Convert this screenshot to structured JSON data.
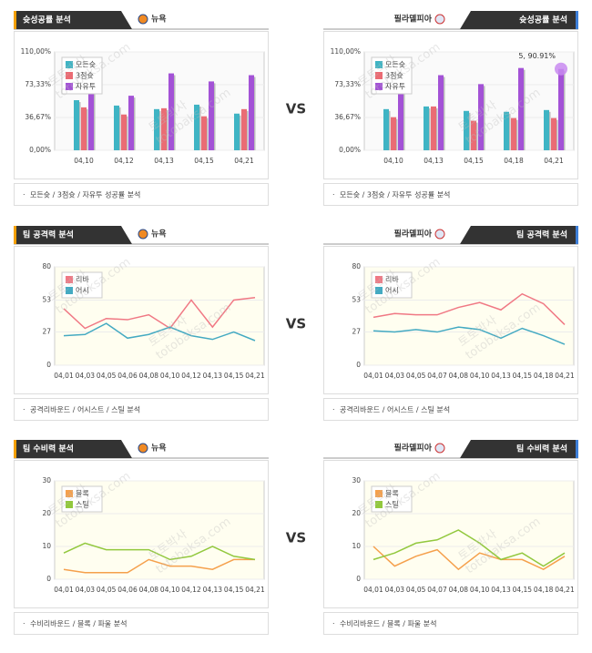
{
  "watermark": [
    "토토박사",
    "totobaksa.com"
  ],
  "vs": [
    "VS",
    "VS",
    "VS"
  ],
  "chart_data": [
    {
      "type": "bar",
      "title": "슛성공률 분석",
      "team": "뉴욕",
      "note": "모든슛 / 3점슛 / 자유투 성공률 분석",
      "categories": [
        "04,10",
        "04,12",
        "04,13",
        "04,15",
        "04,21"
      ],
      "series": [
        {
          "name": "모든슛",
          "color": "#3fb4c4",
          "values": [
            56,
            50,
            46,
            51,
            41
          ]
        },
        {
          "name": "3점슛",
          "color": "#ea6c74",
          "values": [
            48,
            40,
            47,
            38,
            46
          ]
        },
        {
          "name": "자유투",
          "color": "#a352d6",
          "values": [
            90,
            61,
            86,
            77,
            84
          ]
        }
      ],
      "ylim": [
        0,
        110
      ],
      "yticks": [
        {
          "value": 0,
          "label": "0,00%"
        },
        {
          "value": 36.67,
          "label": "36,67%"
        },
        {
          "value": 73.33,
          "label": "73,33%"
        },
        {
          "value": 110,
          "label": "110,00%"
        }
      ],
      "grid": true,
      "legend": "upper left"
    },
    {
      "type": "bar",
      "title": "슛성공률 분석",
      "team": "필라델피아",
      "note": "모든슛 / 3점슛 / 자유투 성공률 분석",
      "categories": [
        "04,10",
        "04,13",
        "04,15",
        "04,18",
        "04,21"
      ],
      "series": [
        {
          "name": "모든슛",
          "color": "#3fb4c4",
          "values": [
            46,
            49,
            44,
            43,
            45
          ]
        },
        {
          "name": "3점슛",
          "color": "#ea6c74",
          "values": [
            37,
            49,
            33,
            36,
            36
          ]
        },
        {
          "name": "자유투",
          "color": "#a352d6",
          "values": [
            70,
            84,
            74,
            92,
            90.91
          ]
        }
      ],
      "ylim": [
        0,
        110
      ],
      "yticks": [
        {
          "value": 0,
          "label": "0,00%"
        },
        {
          "value": 36.67,
          "label": "36,67%"
        },
        {
          "value": 73.33,
          "label": "73,33%"
        },
        {
          "value": 110,
          "label": "110,00%"
        }
      ],
      "grid": true,
      "legend": "upper left",
      "annotation": "5, 90.91%"
    },
    {
      "type": "line",
      "title": "팀 공격력 분석",
      "team": "뉴욕",
      "note": "공격리바운드 / 어시스트 / 스틸 분석",
      "categories": [
        "04,01",
        "04,03",
        "04,05",
        "04,06",
        "04,08",
        "04,10",
        "04,12",
        "04,13",
        "04,15",
        "04,21"
      ],
      "series": [
        {
          "name": "리바",
          "color": "#f07884",
          "values": [
            46,
            30,
            38,
            37,
            41,
            30,
            53,
            31,
            53,
            55
          ]
        },
        {
          "name": "어시",
          "color": "#44aac2",
          "values": [
            24,
            25,
            34,
            22,
            25,
            31,
            24,
            21,
            27,
            20
          ]
        }
      ],
      "ylim": [
        0,
        80
      ],
      "yticks": [
        0,
        27,
        53,
        80
      ],
      "grid": true,
      "legend": "upper left"
    },
    {
      "type": "line",
      "title": "팀 공격력 분석",
      "team": "필라델피아",
      "note": "공격리바운드 / 어시스트 / 스틸 분석",
      "categories": [
        "04,01",
        "04,03",
        "04,05",
        "04,07",
        "04,08",
        "04,10",
        "04,13",
        "04,15",
        "04,18",
        "04,21"
      ],
      "series": [
        {
          "name": "리바",
          "color": "#f07884",
          "values": [
            39,
            42,
            41,
            41,
            47,
            51,
            45,
            58,
            50,
            33
          ]
        },
        {
          "name": "어시",
          "color": "#44aac2",
          "values": [
            28,
            27,
            29,
            27,
            31,
            29,
            22,
            30,
            24,
            17
          ]
        }
      ],
      "ylim": [
        0,
        80
      ],
      "yticks": [
        0,
        27,
        53,
        80
      ],
      "grid": true,
      "legend": "upper left"
    },
    {
      "type": "line",
      "title": "팀 수비력 분석",
      "team": "뉴욕",
      "note": "수비리바운드 / 블록 / 파울 분석",
      "categories": [
        "04,01",
        "04,03",
        "04,05",
        "04,06",
        "04,08",
        "04,10",
        "04,12",
        "04,13",
        "04,15",
        "04,21"
      ],
      "series": [
        {
          "name": "블록",
          "color": "#f5a04c",
          "values": [
            3,
            2,
            2,
            2,
            6,
            4,
            4,
            3,
            6,
            6
          ]
        },
        {
          "name": "스틸",
          "color": "#92c83e",
          "values": [
            8,
            11,
            9,
            9,
            9,
            6,
            7,
            10,
            7,
            6
          ]
        }
      ],
      "ylim": [
        0,
        30
      ],
      "yticks": [
        0,
        10,
        20,
        30
      ],
      "grid": true,
      "legend": "upper left"
    },
    {
      "type": "line",
      "title": "팀 수비력 분석",
      "team": "필라델피아",
      "note": "수비리바운드 / 블록 / 파울 분석",
      "categories": [
        "04,01",
        "04,03",
        "04,05",
        "04,07",
        "04,08",
        "04,10",
        "04,13",
        "04,15",
        "04,18",
        "04,21"
      ],
      "series": [
        {
          "name": "블록",
          "color": "#f5a04c",
          "values": [
            10,
            4,
            7,
            9,
            3,
            8,
            6,
            6,
            3,
            7
          ]
        },
        {
          "name": "스틸",
          "color": "#92c83e",
          "values": [
            6,
            8,
            11,
            12,
            15,
            11,
            6,
            8,
            4,
            8
          ]
        }
      ],
      "ylim": [
        0,
        30
      ],
      "yticks": [
        0,
        10,
        20,
        30
      ],
      "grid": true,
      "legend": "upper left"
    }
  ]
}
